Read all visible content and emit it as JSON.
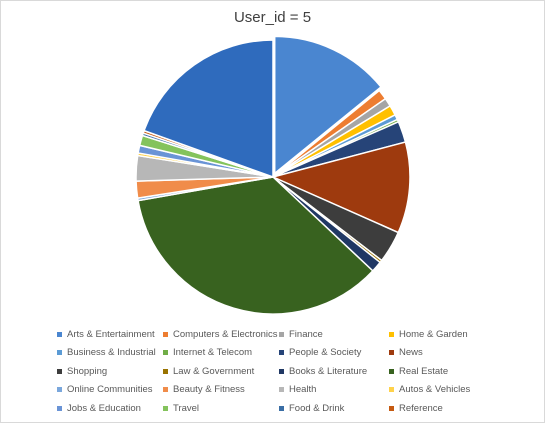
{
  "chart_data": {
    "type": "pie",
    "title": "User_id = 5",
    "legend_position": "bottom",
    "slices": [
      {
        "name": "Arts & Entertainment",
        "value": 14.2,
        "color": "#4a86d0"
      },
      {
        "name": "Computers & Electronics",
        "value": 1.2,
        "color": "#ed7d31"
      },
      {
        "name": "Finance",
        "value": 1.0,
        "color": "#a5a5a5"
      },
      {
        "name": "Home & Garden",
        "value": 1.2,
        "color": "#ffc000"
      },
      {
        "name": "Business & Industrial",
        "value": 0.6,
        "color": "#5b9bd5"
      },
      {
        "name": "Internet & Telecom",
        "value": 0.3,
        "color": "#70ad47"
      },
      {
        "name": "People & Society",
        "value": 2.5,
        "color": "#264478"
      },
      {
        "name": "News",
        "value": 10.8,
        "color": "#9e3a0e"
      },
      {
        "name": "Shopping",
        "value": 3.8,
        "color": "#3d3d3d"
      },
      {
        "name": "Law & Government",
        "value": 0.3,
        "color": "#997300"
      },
      {
        "name": "Books & Literature",
        "value": 1.3,
        "color": "#203864"
      },
      {
        "name": "Real Estate",
        "value": 35.4,
        "color": "#38621f"
      },
      {
        "name": "Online Communities",
        "value": 0.3,
        "color": "#7aa7dc"
      },
      {
        "name": "Beauty & Fitness",
        "value": 2.0,
        "color": "#f08c4a"
      },
      {
        "name": "Health",
        "value": 3.0,
        "color": "#b7b7b7"
      },
      {
        "name": "Autos & Vehicles",
        "value": 0.3,
        "color": "#ffd24a"
      },
      {
        "name": "Jobs & Education",
        "value": 0.9,
        "color": "#6a94d6"
      },
      {
        "name": "Travel",
        "value": 1.2,
        "color": "#84c35c"
      },
      {
        "name": "Food & Drink",
        "value": 0.3,
        "color": "#3a6ea5"
      },
      {
        "name": "Reference",
        "value": 0.3,
        "color": "#c55a11"
      },
      {
        "name": "",
        "value": 19.6,
        "color": "#2f6bbd"
      }
    ]
  }
}
